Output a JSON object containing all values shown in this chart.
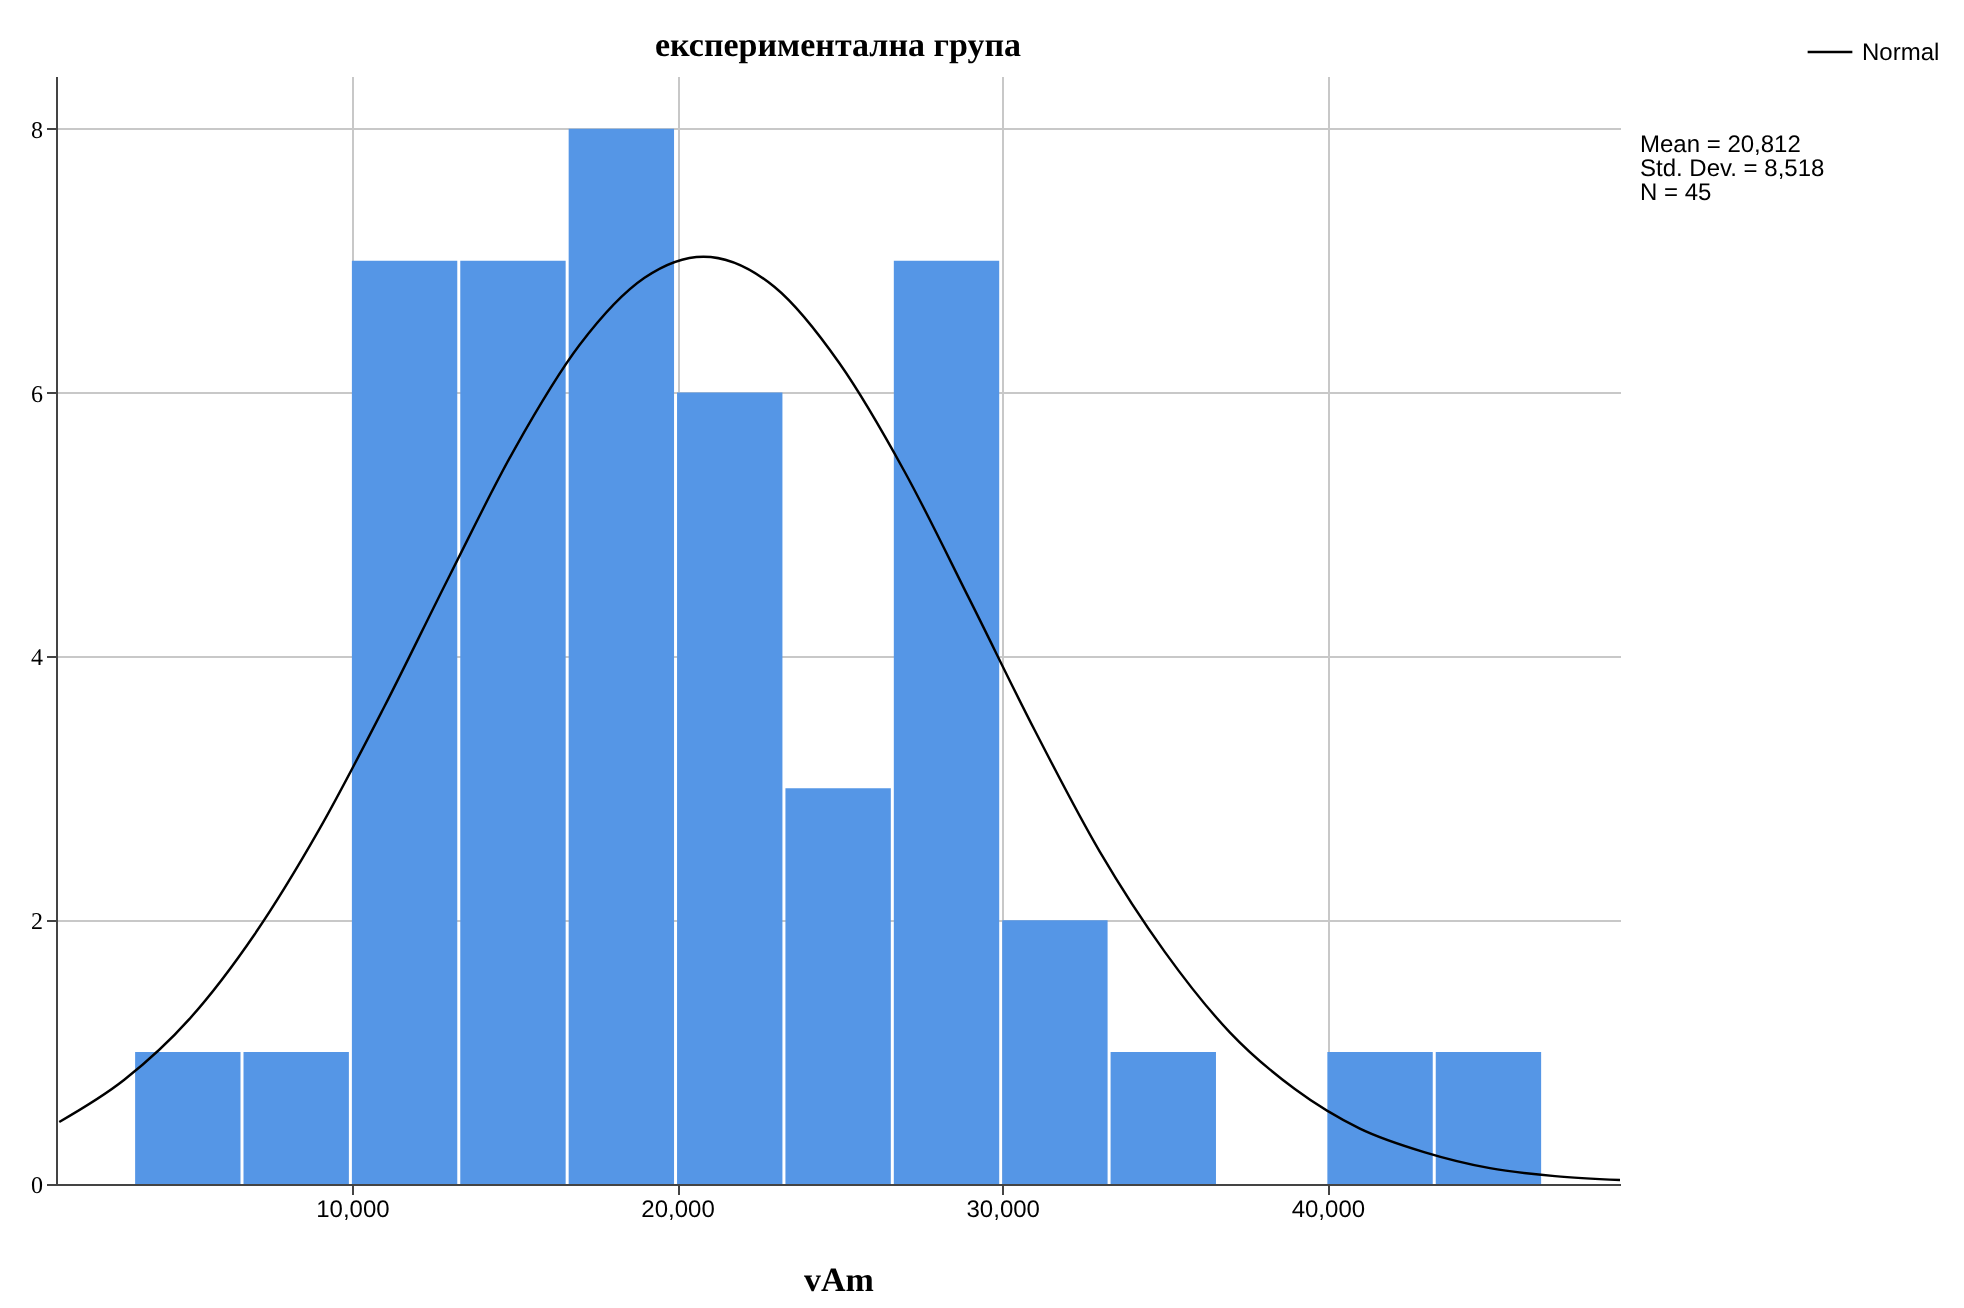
{
  "chart_data": {
    "type": "histogram",
    "title": "експериментална група",
    "xlabel": "vAm",
    "bins": [
      3333.3,
      6666.7,
      10000,
      13333.3,
      16666.7,
      20000,
      23333.3,
      26666.7,
      30000,
      33333.3,
      36666.7,
      40000,
      43333.3,
      46666.7
    ],
    "values": [
      1,
      1,
      7,
      7,
      8,
      6,
      3,
      7,
      2,
      1,
      0,
      1,
      1
    ],
    "color": "#5596e6",
    "series": [
      {
        "name": "Normal",
        "type": "line",
        "color": "#000000",
        "x": [
          1000,
          3000,
          5000,
          7000,
          9000,
          11000,
          13000,
          15000,
          17000,
          19000,
          20812,
          23000,
          25000,
          27000,
          29000,
          31000,
          33000,
          35000,
          37000,
          39000,
          41000,
          43000,
          45000,
          47000,
          49000
        ],
        "values": [
          0.47,
          0.79,
          1.25,
          1.89,
          2.69,
          3.62,
          4.61,
          5.57,
          6.36,
          6.87,
          7.03,
          6.8,
          6.22,
          5.4,
          4.43,
          3.44,
          2.52,
          1.76,
          1.15,
          0.72,
          0.42,
          0.24,
          0.12,
          0.06,
          0.03
        ]
      }
    ],
    "xlim": [
      900,
      49000
    ],
    "ylim": [
      0,
      8.4
    ],
    "xticks": [
      {
        "value": 10000,
        "label": "10,000"
      },
      {
        "value": 20000,
        "label": "20,000"
      },
      {
        "value": 30000,
        "label": "30,000"
      },
      {
        "value": 40000,
        "label": "40,000"
      }
    ],
    "yticks": [
      0,
      2,
      4,
      6,
      8
    ],
    "grid": true,
    "legend": "top right",
    "annotations": [
      "Mean = 20,812",
      "Std. Dev. = 8,518",
      "N = 45"
    ]
  }
}
